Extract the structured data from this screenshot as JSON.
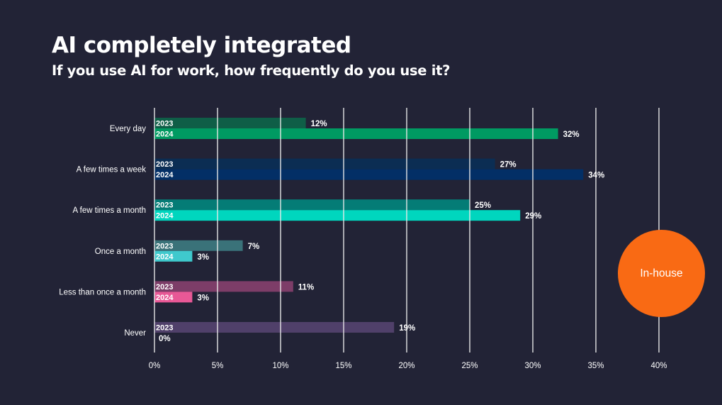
{
  "chart_data": {
    "type": "bar",
    "orientation": "horizontal",
    "title": "AI completely integrated",
    "subtitle": "If you use AI for work, how frequently do you use it?",
    "xlabel": "",
    "ylabel": "",
    "xlim": [
      0,
      40
    ],
    "x_ticks": [
      0,
      5,
      10,
      15,
      20,
      25,
      30,
      35,
      40
    ],
    "x_tick_labels": [
      "0%",
      "5%",
      "10%",
      "15%",
      "20%",
      "25%",
      "30%",
      "35%",
      "40%"
    ],
    "grid": true,
    "categories": [
      "Every day",
      "A few times a week",
      "A few times a month",
      "Once a month",
      "Less than once a month",
      "Never"
    ],
    "series": [
      {
        "name": "2023",
        "values": [
          12,
          27,
          25,
          7,
          11,
          19
        ],
        "colors": [
          "#0f5e47",
          "#0b2d53",
          "#047c76",
          "#3a7279",
          "#7d3d68",
          "#50406a"
        ]
      },
      {
        "name": "2024",
        "values": [
          32,
          34,
          29,
          3,
          3,
          0
        ],
        "colors": [
          "#009a62",
          "#032f66",
          "#00d6be",
          "#3fc9cd",
          "#e85896",
          "#50406a"
        ]
      }
    ],
    "value_suffix": "%",
    "badge": {
      "label": "In-house",
      "color": "#f96a14"
    }
  }
}
